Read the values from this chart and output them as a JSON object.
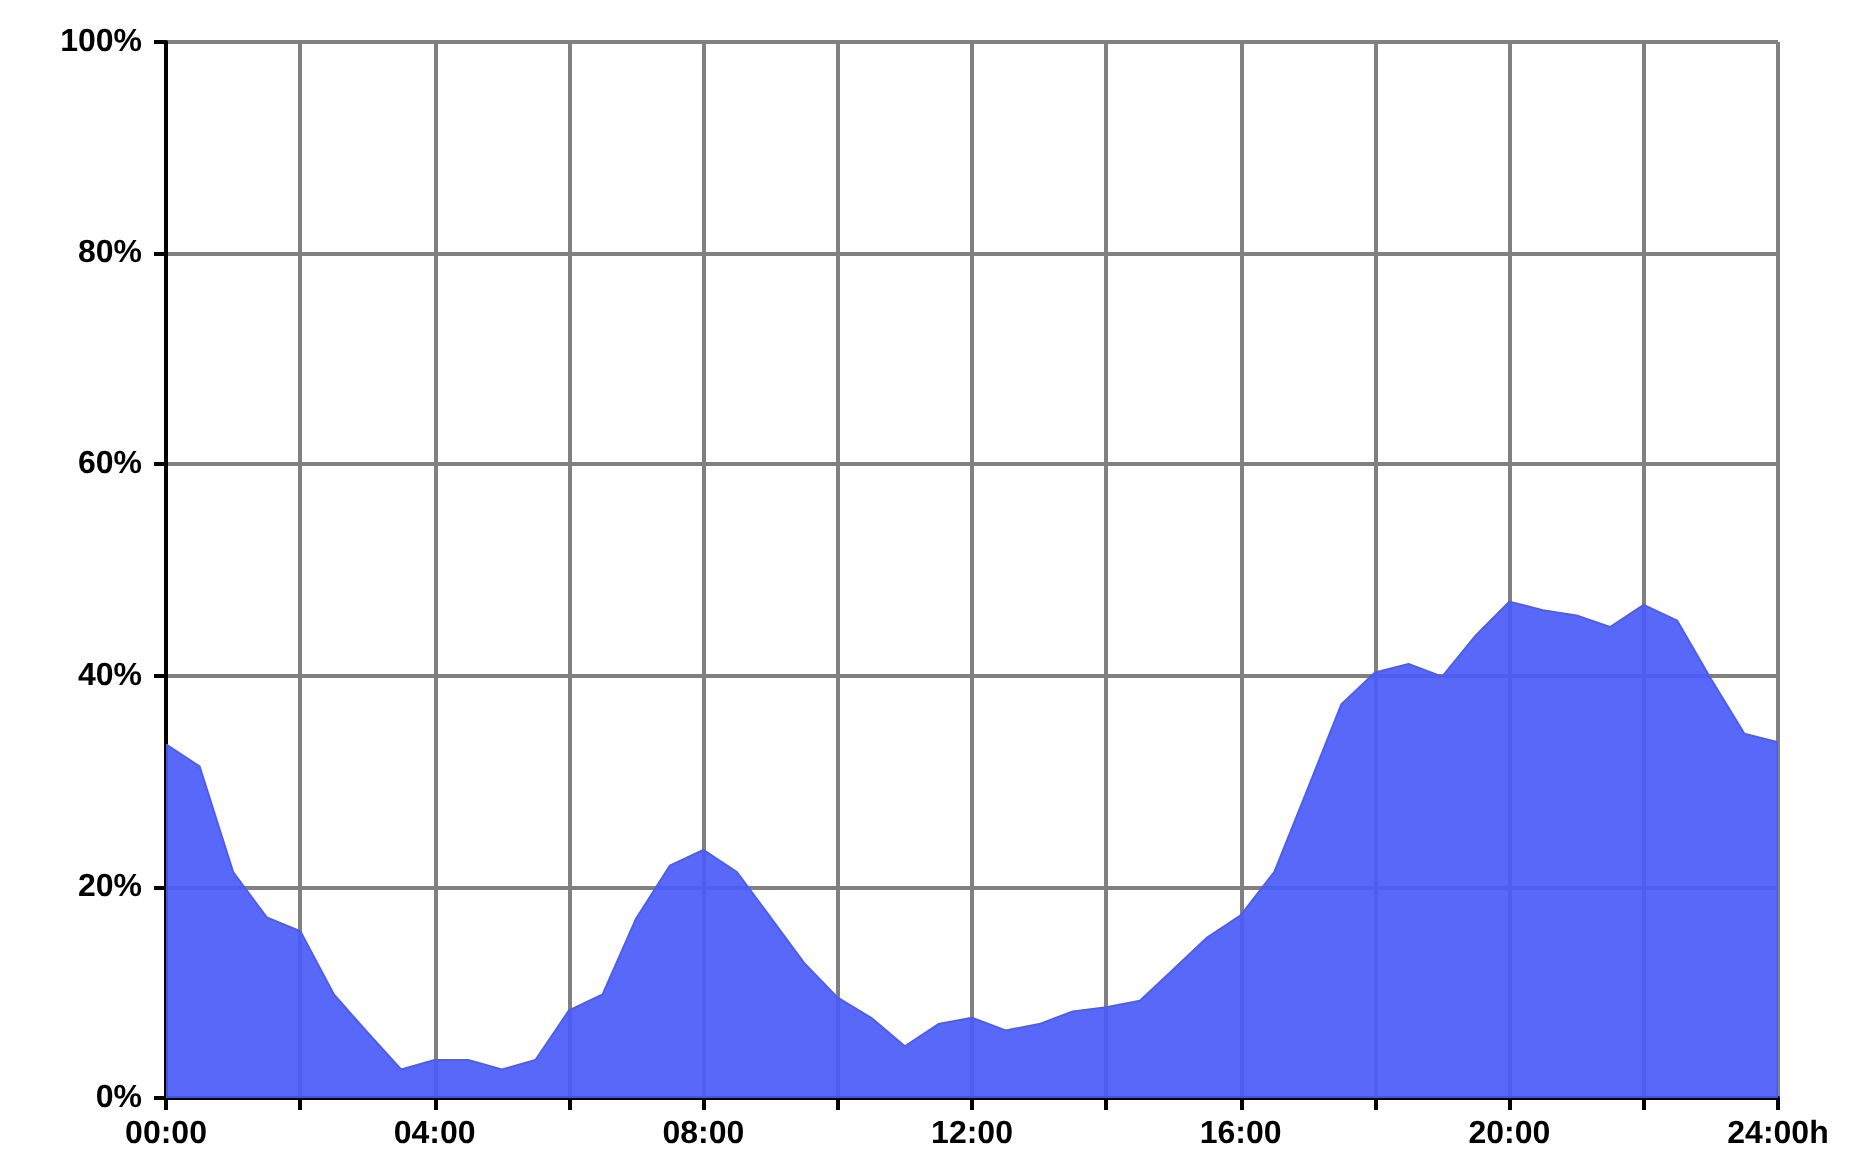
{
  "chart_data": {
    "type": "area",
    "x": [
      0,
      0.5,
      1,
      1.5,
      2,
      2.5,
      3,
      3.5,
      4,
      4.5,
      5,
      5.5,
      6,
      6.5,
      7,
      7.5,
      8,
      8.5,
      9,
      9.5,
      10,
      10.5,
      11,
      11.5,
      12,
      12.5,
      13,
      13.5,
      14,
      14.5,
      15,
      15.5,
      16,
      16.5,
      17,
      17.5,
      18,
      18.5,
      19,
      19.5,
      20,
      20.5,
      21,
      21.5,
      22,
      22.5,
      23,
      23.5,
      24
    ],
    "series": [
      {
        "color": "#4a5cfa",
        "values": [
          33.5,
          31.4,
          21.4,
          17.1,
          15.8,
          9.8,
          6.2,
          2.7,
          3.6,
          3.6,
          2.7,
          3.6,
          8.3,
          9.8,
          17.0,
          22.0,
          23.5,
          21.4,
          17.1,
          12.8,
          9.5,
          7.6,
          4.9,
          7.0,
          7.6,
          6.4,
          7.0,
          8.2,
          8.6,
          9.2,
          12.2,
          15.2,
          17.3,
          21.4,
          29.3,
          37.3,
          40.3,
          41.1,
          39.9,
          43.8,
          47.0,
          46.2,
          45.7,
          44.6,
          46.7,
          45.2,
          39.7,
          34.5,
          33.7
        ]
      }
    ],
    "xlim": [
      0,
      24
    ],
    "xticks": [
      {
        "value": 0,
        "label": "00:00"
      },
      {
        "value": 2,
        "label": null
      },
      {
        "value": 4,
        "label": "04:00"
      },
      {
        "value": 6,
        "label": null
      },
      {
        "value": 8,
        "label": "08:00"
      },
      {
        "value": 10,
        "label": null
      },
      {
        "value": 12,
        "label": "12:00"
      },
      {
        "value": 14,
        "label": null
      },
      {
        "value": 16,
        "label": "16:00"
      },
      {
        "value": 18,
        "label": null
      },
      {
        "value": 20,
        "label": "20:00"
      },
      {
        "value": 22,
        "label": null
      },
      {
        "value": 24,
        "label": "24:00h"
      }
    ],
    "ylim": [
      0,
      100
    ],
    "yticks": [
      {
        "value": 0,
        "label": "0%"
      },
      {
        "value": 20,
        "label": "20%"
      },
      {
        "value": 40,
        "label": "40%"
      },
      {
        "value": 60,
        "label": "60%"
      },
      {
        "value": 80,
        "label": "80%"
      },
      {
        "value": 100,
        "label": "100%"
      }
    ],
    "grid": true,
    "marker": "none"
  }
}
